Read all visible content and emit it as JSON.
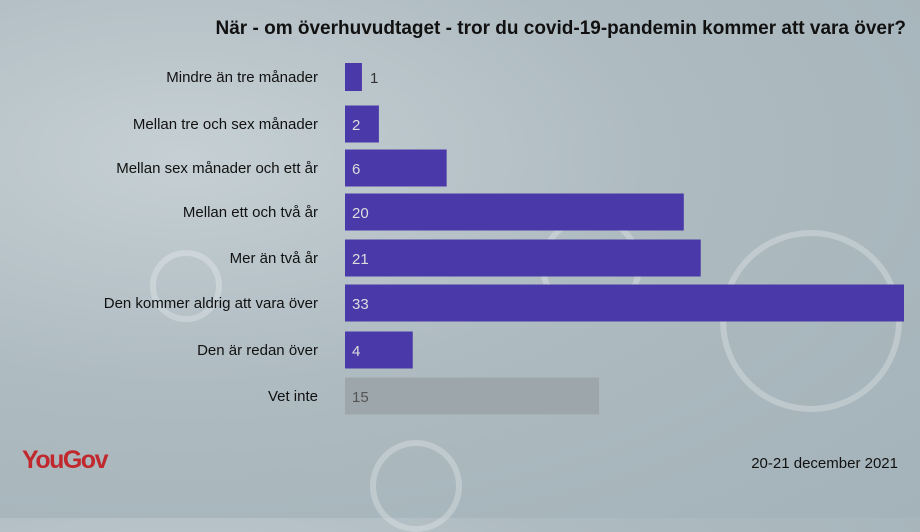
{
  "title": "När - om överhuvudtaget - tror du covid-19-pandemin kommer att vara över?",
  "logo": "YouGov",
  "date": "20-21 december 2021",
  "colors": {
    "bar": "#4a39a8",
    "bar_unknown": "#9da7ab",
    "logo": "#c0282d"
  },
  "chart_data": {
    "type": "bar",
    "orientation": "horizontal",
    "title": "När - om överhuvudtaget - tror du covid-19-pandemin kommer att vara över?",
    "categories": [
      "Mindre än tre månader",
      "Mellan tre och sex månader",
      "Mellan sex månader och ett år",
      "Mellan ett och två år",
      "Mer än två år",
      "Den kommer aldrig att vara över",
      "Den är redan över",
      "Vet inte"
    ],
    "values": [
      1,
      2,
      6,
      20,
      21,
      33,
      4,
      15
    ],
    "xlim": [
      0,
      33
    ],
    "grid": false,
    "data_labels": true
  }
}
